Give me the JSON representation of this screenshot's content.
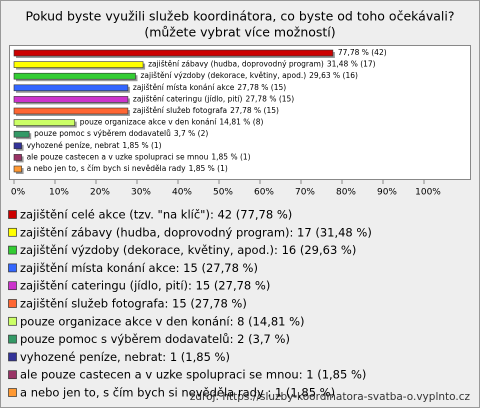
{
  "chart_data": {
    "type": "bar",
    "orientation": "horizontal",
    "title": "Pokud byste využili služeb koordinátora, co byste od toho očekávali?",
    "subtitle": "(můžete vybrat více možností)",
    "categories": [
      null,
      "zajištění zábavy (hudba, doprovodný program)",
      "zajištění výzdoby (dekorace, květiny, apod.)",
      "zajištění místa konání akce",
      "zajištění cateringu (jídlo, pití)",
      "zajištění služeb fotografa",
      "pouze organizace akce v den konání",
      "pouze pomoc s výběrem dodavatelů",
      "vyhozené peníze, nebrat",
      "ale pouze castecen a v uzke spolupraci se mnou",
      "a nebo jen to, s čím bych si nevěděla rady "
    ],
    "values": [
      77.78,
      31.48,
      29.63,
      27.78,
      27.78,
      27.78,
      14.81,
      3.7,
      1.85,
      1.85,
      1.85
    ],
    "value_labels": [
      "77,78 % (42)",
      "31,48 % (17)",
      "29,63 % (16)",
      "27,78 % (15)",
      "27,78 % (15)",
      "27,78 % (15)",
      "14,81 % (8)",
      "3,7 % (2)",
      "1,85 % (1)",
      "1,85 % (1)",
      "1,85 % (1)"
    ],
    "colors": [
      "#cc0000",
      "#ffff00",
      "#33cc33",
      "#3366ff",
      "#cc33cc",
      "#ff6633",
      "#ccff66",
      "#339966",
      "#333399",
      "#993366",
      "#ff9933"
    ],
    "legend_labels": [
      "zajištění celé akce (tzv. \"na klíč\"): 42 (77,78 %)",
      "zajištění zábavy (hudba, doprovodný program): 17 (31,48 %)",
      "zajištění výzdoby (dekorace, květiny, apod.): 16 (29,63 %)",
      "zajištění místa konání akce: 15 (27,78 %)",
      "zajištění cateringu (jídlo, pití): 15 (27,78 %)",
      "zajištění služeb fotografa: 15 (27,78 %)",
      "pouze organizace akce v den konání: 8 (14,81 %)",
      "pouze pomoc s výběrem dodavatelů: 2 (3,7 %)",
      "vyhozené peníze, nebrat: 1 (1,85 %)",
      "ale pouze castecen a v uzke spolupraci se mnou: 1 (1,85 %)",
      "a nebo jen to, s čím bych si nevěděla rady : 1 (1,85 %)"
    ],
    "xlim": [
      0,
      100
    ],
    "xticks": [
      {
        "value": 0,
        "label": "0%"
      },
      {
        "value": 10,
        "label": "10%"
      },
      {
        "value": 20,
        "label": "20%"
      },
      {
        "value": 30,
        "label": "30%"
      },
      {
        "value": 40,
        "label": "40%"
      },
      {
        "value": 50,
        "label": "50%"
      },
      {
        "value": 60,
        "label": "60%"
      },
      {
        "value": 70,
        "label": "70%"
      },
      {
        "value": 80,
        "label": "80%"
      },
      {
        "value": 90,
        "label": "90%"
      },
      {
        "value": 100,
        "label": "100%"
      }
    ],
    "source": "zdroj: https://sluzby-koordinatora-svatba-o.vyplnto.cz"
  }
}
